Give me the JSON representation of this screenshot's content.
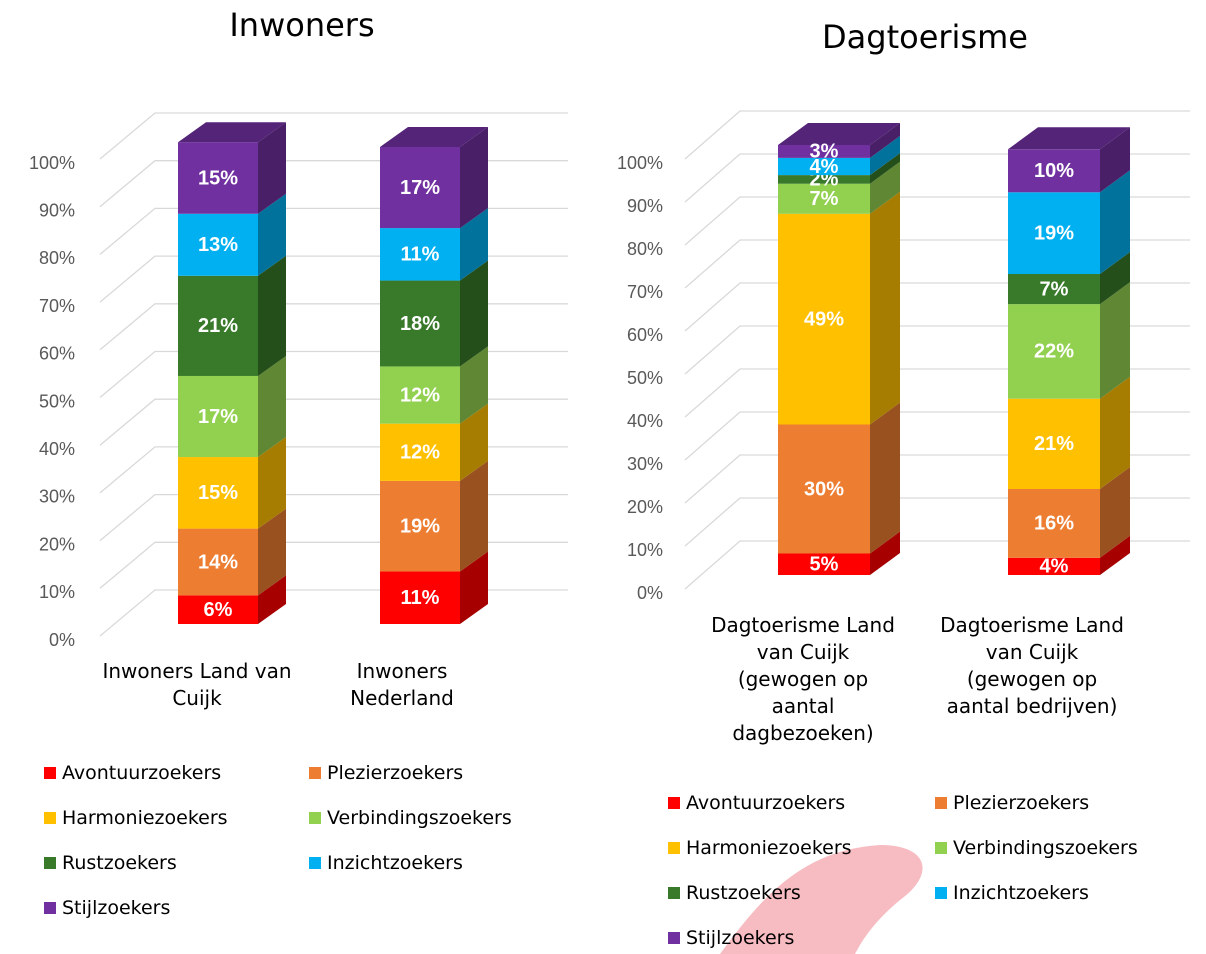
{
  "chart_data": [
    {
      "type": "bar3d-stacked",
      "title": "Inwoners",
      "categories": [
        "Inwoners Land van Cuijk",
        "Inwoners Nederland"
      ],
      "ylim": [
        0,
        100
      ],
      "yticks": [
        {
          "value": 0,
          "label": "0%"
        },
        {
          "value": 10,
          "label": "10%"
        },
        {
          "value": 20,
          "label": "20%"
        },
        {
          "value": 30,
          "label": "30%"
        },
        {
          "value": 40,
          "label": "40%"
        },
        {
          "value": 50,
          "label": "50%"
        },
        {
          "value": 60,
          "label": "60%"
        },
        {
          "value": 70,
          "label": "70%"
        },
        {
          "value": 80,
          "label": "80%"
        },
        {
          "value": 90,
          "label": "90%"
        },
        {
          "value": 100,
          "label": "100%"
        }
      ],
      "grid": true,
      "legend": "bottom",
      "series": [
        {
          "name": "Avontuurzoekers",
          "color": "#ff0000",
          "values": [
            6,
            11
          ],
          "value_labels": [
            "6%",
            "11%"
          ]
        },
        {
          "name": "Plezierzoekers",
          "color": "#ed7d31",
          "values": [
            14,
            19
          ],
          "value_labels": [
            "14%",
            "19%"
          ]
        },
        {
          "name": "Harmoniezoekers",
          "color": "#ffc000",
          "values": [
            15,
            12
          ],
          "value_labels": [
            "15%",
            "12%"
          ]
        },
        {
          "name": "Verbindingszoekers",
          "color": "#92d050",
          "values": [
            17,
            12
          ],
          "value_labels": [
            "17%",
            "12%"
          ]
        },
        {
          "name": "Rustzoekers",
          "color": "#38792a",
          "values": [
            21,
            18
          ],
          "value_labels": [
            "21%",
            "18%"
          ]
        },
        {
          "name": "Inzichtzoekers",
          "color": "#00b0f0",
          "values": [
            13,
            11
          ],
          "value_labels": [
            "13%",
            "11%"
          ]
        },
        {
          "name": "Stijlzoekers",
          "color": "#7030a0",
          "values": [
            15,
            17
          ],
          "value_labels": [
            "15%",
            "17%"
          ]
        }
      ]
    },
    {
      "type": "bar3d-stacked",
      "title": "Dagtoerisme",
      "categories": [
        "Dagtoerisme Land van Cuijk (gewogen op aantal dagbezoeken)",
        "Dagtoerisme Land van Cuijk (gewogen op aantal bedrijven)"
      ],
      "ylim": [
        0,
        100
      ],
      "yticks": [
        {
          "value": 0,
          "label": "0%"
        },
        {
          "value": 10,
          "label": "10%"
        },
        {
          "value": 20,
          "label": "20%"
        },
        {
          "value": 30,
          "label": "30%"
        },
        {
          "value": 40,
          "label": "40%"
        },
        {
          "value": 50,
          "label": "50%"
        },
        {
          "value": 60,
          "label": "60%"
        },
        {
          "value": 70,
          "label": "70%"
        },
        {
          "value": 80,
          "label": "80%"
        },
        {
          "value": 90,
          "label": "90%"
        },
        {
          "value": 100,
          "label": "100%"
        }
      ],
      "grid": true,
      "legend": "bottom",
      "series": [
        {
          "name": "Avontuurzoekers",
          "color": "#ff0000",
          "values": [
            5,
            4
          ],
          "value_labels": [
            "5%",
            "4%"
          ]
        },
        {
          "name": "Plezierzoekers",
          "color": "#ed7d31",
          "values": [
            30,
            16
          ],
          "value_labels": [
            "30%",
            "16%"
          ]
        },
        {
          "name": "Harmoniezoekers",
          "color": "#ffc000",
          "values": [
            49,
            21
          ],
          "value_labels": [
            "49%",
            "21%"
          ]
        },
        {
          "name": "Verbindingszoekers",
          "color": "#92d050",
          "values": [
            7,
            22
          ],
          "value_labels": [
            "7%",
            "22%"
          ]
        },
        {
          "name": "Rustzoekers",
          "color": "#38792a",
          "values": [
            2,
            7
          ],
          "value_labels": [
            "2%",
            "7%"
          ]
        },
        {
          "name": "Inzichtzoekers",
          "color": "#00b0f0",
          "values": [
            4,
            19
          ],
          "value_labels": [
            "4%",
            "19%"
          ]
        },
        {
          "name": "Stijlzoekers",
          "color": "#7030a0",
          "values": [
            3,
            10
          ],
          "value_labels": [
            "3%",
            "10%"
          ]
        }
      ]
    }
  ]
}
